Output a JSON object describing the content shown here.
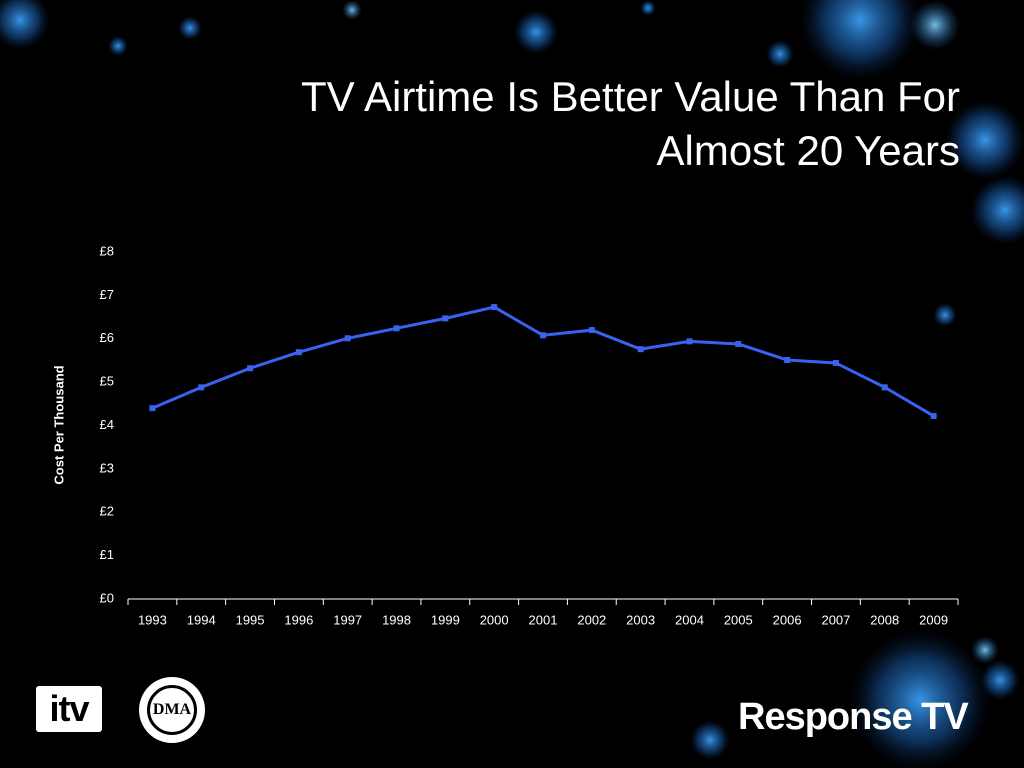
{
  "chart_data": {
    "type": "line",
    "title": "TV Airtime Is Better Value Than For Almost 20 Years",
    "y_label": "Cost Per Thousand",
    "categories": [
      "1993",
      "1994",
      "1995",
      "1996",
      "1997",
      "1998",
      "1999",
      "2000",
      "2001",
      "2002",
      "2003",
      "2004",
      "2005",
      "2006",
      "2007",
      "2008",
      "2009"
    ],
    "series": [
      {
        "name": "Cost Per Thousand",
        "color": "#3a62f0",
        "values": [
          4.4,
          4.88,
          5.32,
          5.69,
          6.01,
          6.24,
          6.47,
          6.73,
          6.08,
          6.2,
          5.76,
          5.94,
          5.88,
          5.51,
          5.44,
          4.88,
          4.22
        ]
      }
    ],
    "ylim": [
      0,
      8
    ],
    "yticks": [
      {
        "value": 0,
        "label": "£0"
      },
      {
        "value": 1,
        "label": "£1"
      },
      {
        "value": 2,
        "label": "£2"
      },
      {
        "value": 3,
        "label": "£3"
      },
      {
        "value": 4,
        "label": "£4"
      },
      {
        "value": 5,
        "label": "£5"
      },
      {
        "value": 6,
        "label": "£6"
      },
      {
        "value": 7,
        "label": "£7"
      },
      {
        "value": 8,
        "label": "£8"
      }
    ],
    "grid": false
  },
  "branding": {
    "itv": "itv",
    "dma": "DMA",
    "response_tv": "Response TV"
  }
}
